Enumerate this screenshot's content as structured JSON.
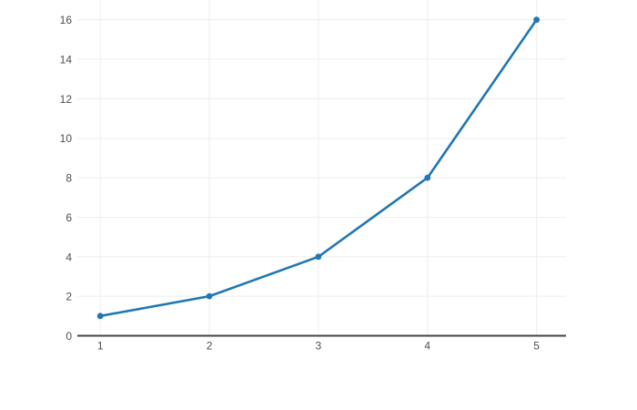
{
  "page": {
    "background": "#ffffff"
  },
  "chart_data": {
    "type": "line",
    "x": [
      1,
      2,
      3,
      4,
      5
    ],
    "y": [
      1,
      2,
      4,
      8,
      16
    ],
    "title": "",
    "xlabel": "",
    "ylabel": "",
    "x_ticks": [
      1,
      2,
      3,
      4,
      5
    ],
    "y_ticks": [
      0,
      2,
      4,
      6,
      8,
      10,
      12,
      14,
      16
    ],
    "xlim": [
      0.79,
      5.27
    ],
    "ylim": [
      0,
      17
    ],
    "grid": true,
    "legend_position": "none",
    "colors": {
      "line": "#1f77b4",
      "marker": "#1f77b4",
      "grid": "#eeeeee",
      "zero_line": "#444444",
      "tick_label": "#4d4d4d",
      "background": "#ffffff"
    },
    "style": {
      "line_width": 2.6,
      "marker_radius": 3.4,
      "tick_font_size": 12
    }
  }
}
